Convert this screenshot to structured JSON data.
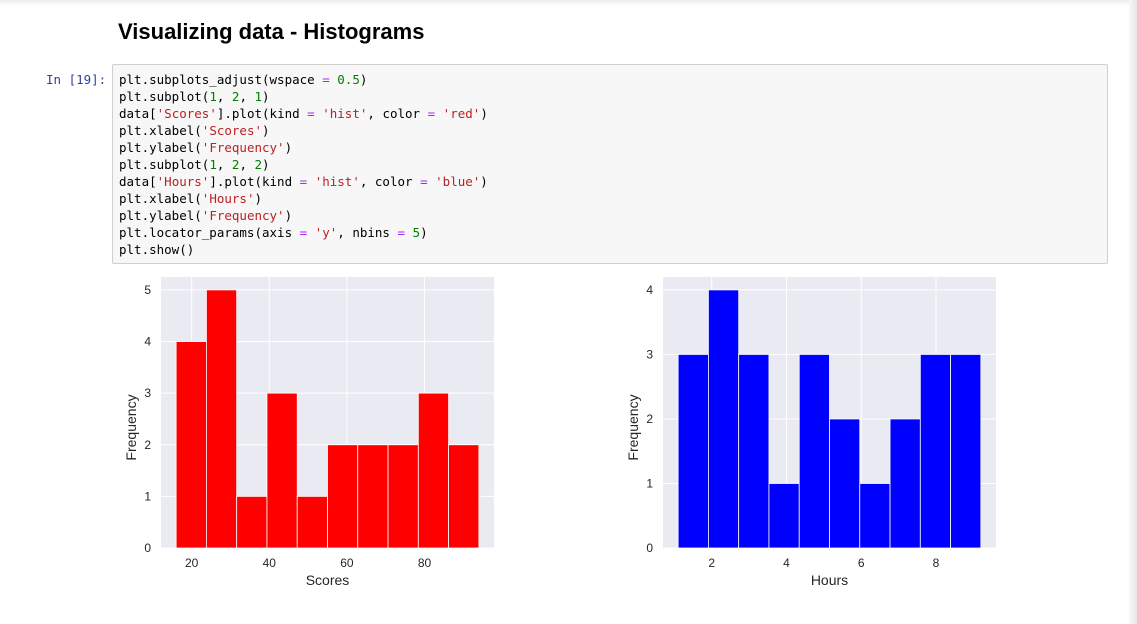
{
  "heading": "Visualizing data - Histograms",
  "cell": {
    "prompt": "In [19]:",
    "code_lines": [
      "plt.subplots_adjust(wspace = 0.5)",
      "plt.subplot(1, 2, 1)",
      "data['Scores'].plot(kind = 'hist', color = 'red')",
      "plt.xlabel('Scores')",
      "plt.ylabel('Frequency')",
      "plt.subplot(1, 2, 2)",
      "data['Hours'].plot(kind = 'hist', color = 'blue')",
      "plt.xlabel('Hours')",
      "plt.ylabel('Frequency')",
      "plt.locator_params(axis = 'y', nbins = 5)",
      "plt.show()"
    ]
  },
  "colors": {
    "plot_background": "#eaeaf2",
    "grid": "#ffffff"
  },
  "chart_data": [
    {
      "type": "bar",
      "subtype": "histogram",
      "color": "#ff0000",
      "bin_edges": [
        16,
        23.8,
        31.6,
        39.4,
        47.2,
        55,
        62.8,
        70.6,
        78.4,
        86.2,
        94
      ],
      "values": [
        4,
        5,
        1,
        3,
        1,
        2,
        2,
        2,
        3,
        2
      ],
      "xlabel": "Scores",
      "ylabel": "Frequency",
      "xlim": [
        12.1,
        97.9
      ],
      "ylim": [
        0,
        5.25
      ],
      "xticks": [
        20,
        40,
        60,
        80
      ],
      "yticks": [
        0,
        1,
        2,
        3,
        4,
        5
      ],
      "grid": true
    },
    {
      "type": "bar",
      "subtype": "histogram",
      "color": "#0000ff",
      "bin_edges": [
        1.1,
        1.91,
        2.72,
        3.53,
        4.34,
        5.15,
        5.96,
        6.77,
        7.58,
        8.39,
        9.2
      ],
      "values": [
        3,
        4,
        3,
        1,
        3,
        2,
        1,
        2,
        3,
        3
      ],
      "xlabel": "Hours",
      "ylabel": "Frequency",
      "xlim": [
        0.695,
        9.605
      ],
      "ylim": [
        0,
        4.2
      ],
      "xticks": [
        2,
        4,
        6,
        8
      ],
      "yticks": [
        0,
        1,
        2,
        3,
        4
      ],
      "grid": true
    }
  ]
}
